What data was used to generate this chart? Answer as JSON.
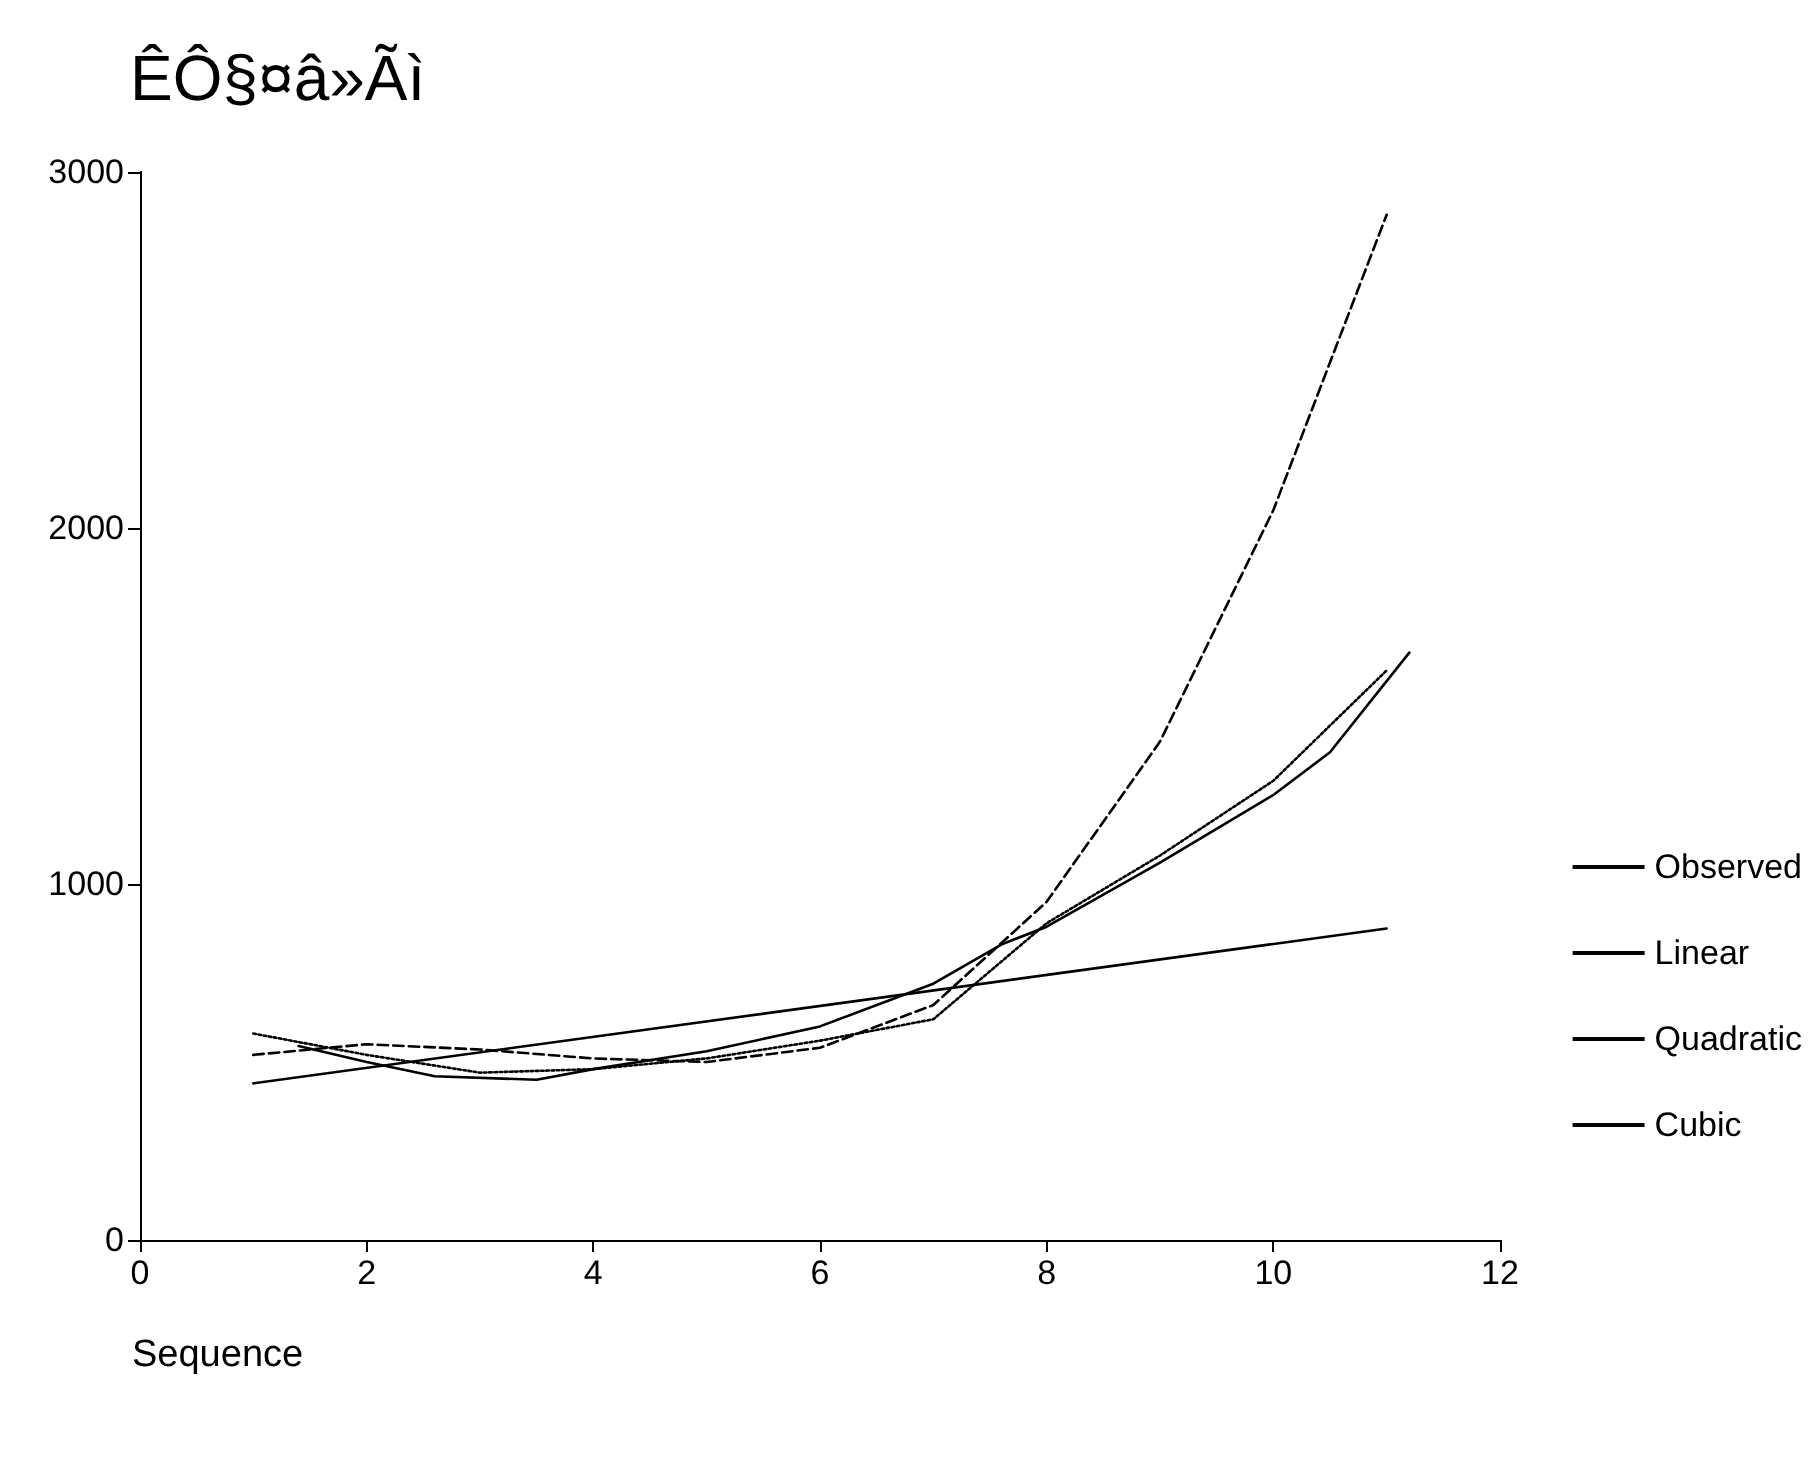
{
  "chart_data": {
    "type": "line",
    "title": "ÊÔ§¤â»Ãì",
    "xlabel": "Sequence",
    "xlim": [
      0,
      12
    ],
    "xticks": [
      0,
      2,
      4,
      6,
      8,
      10,
      12
    ],
    "ylim": [
      0,
      3000
    ],
    "yticks": [
      0,
      1000,
      2000,
      3000
    ],
    "grid": false,
    "legend": "right",
    "marker": "none",
    "series": [
      {
        "name": "Observed",
        "color": "#000000",
        "line_style": "dotted",
        "x": [
          1,
          2,
          3,
          4,
          5,
          6,
          7,
          8,
          9,
          10,
          11
        ],
        "values": [
          580,
          520,
          470,
          480,
          510,
          560,
          620,
          890,
          1080,
          1290,
          1600
        ]
      },
      {
        "name": "Linear",
        "color": "#000000",
        "line_style": "solid",
        "x": [
          1,
          11
        ],
        "values": [
          440,
          875
        ]
      },
      {
        "name": "Quadratic",
        "color": "#000000",
        "line_style": "solid",
        "x": [
          1.4,
          2,
          2.6,
          3.5,
          4,
          5,
          6,
          7,
          7.6,
          8,
          9,
          10,
          10.5,
          11.2
        ],
        "values": [
          545,
          500,
          460,
          450,
          480,
          530,
          600,
          720,
          830,
          880,
          1060,
          1250,
          1370,
          1650
        ]
      },
      {
        "name": "Cubic",
        "color": "#000000",
        "line_style": "dashed",
        "x": [
          1,
          2,
          3,
          4,
          5,
          6,
          7,
          8,
          9,
          10,
          11
        ],
        "values": [
          520,
          550,
          535,
          510,
          500,
          540,
          660,
          950,
          1400,
          2050,
          2880
        ]
      }
    ]
  }
}
